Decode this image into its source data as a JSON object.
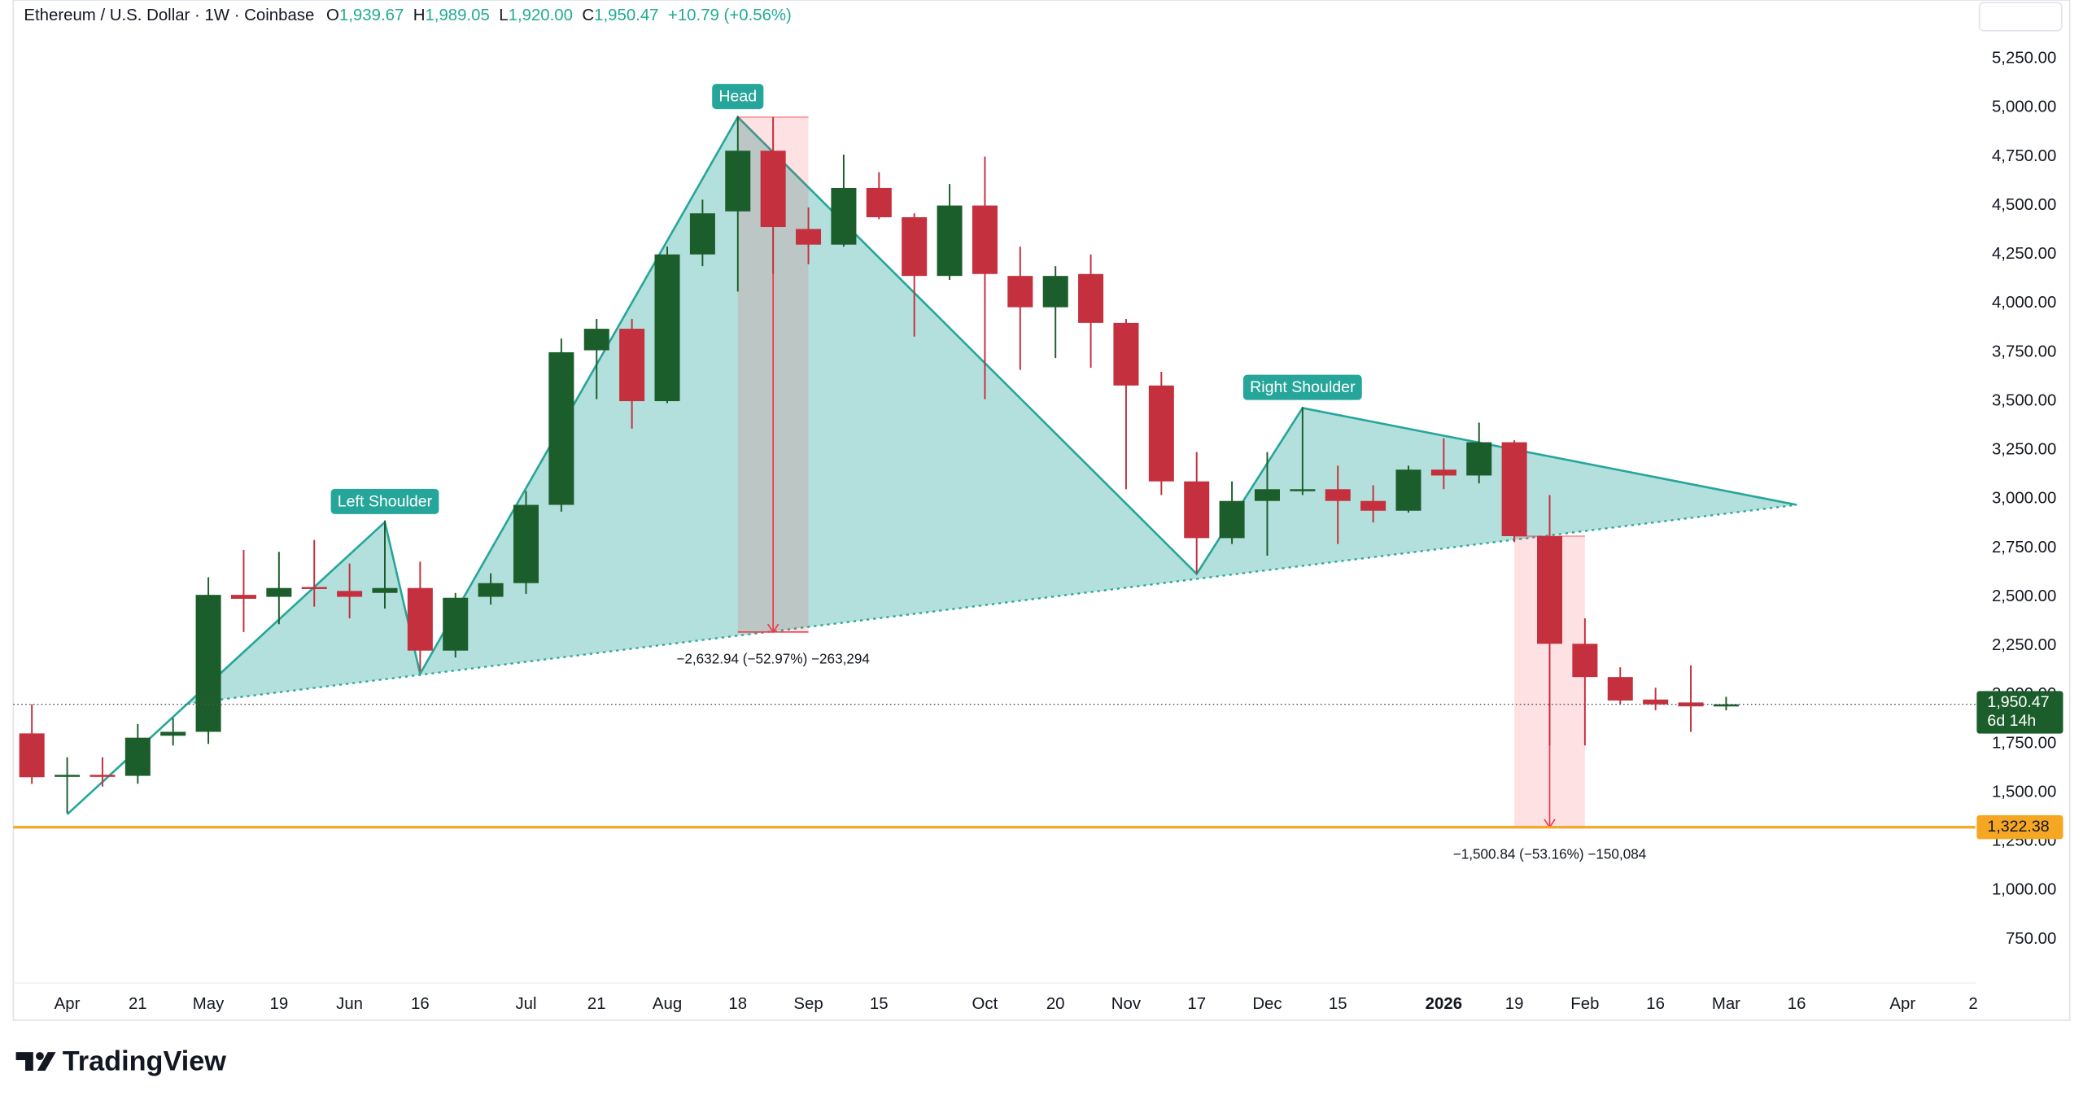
{
  "chart_data": {
    "type": "candlestick",
    "header": {
      "title": "Ethereum / U.S. Dollar · 1W · Coinbase",
      "ohlc": [
        {
          "label": "O",
          "value": "1,939.67"
        },
        {
          "label": "H",
          "value": "1,989.05"
        },
        {
          "label": "L",
          "value": "1,920.00"
        },
        {
          "label": "C",
          "value": "1,950.47"
        }
      ],
      "change": "+10.79 (+0.56%)"
    },
    "currency": "USD",
    "categories": [
      null,
      "Apr",
      null,
      "21",
      null,
      "May",
      null,
      "19",
      null,
      "Jun",
      null,
      "16",
      null,
      null,
      "Jul",
      null,
      "21",
      null,
      "Aug",
      null,
      "18",
      null,
      "Sep",
      null,
      "15",
      null,
      null,
      "Oct",
      null,
      "20",
      null,
      "Nov",
      null,
      "17",
      null,
      "Dec",
      null,
      "15",
      null,
      null,
      "2026",
      null,
      "19",
      null,
      "Feb",
      null,
      "16",
      null,
      "Mar",
      null,
      "16",
      null,
      null,
      "Apr",
      null,
      "2"
    ],
    "bold_categories": [
      "2026"
    ],
    "open": [
      1802,
      1580,
      1590,
      1585,
      1790,
      1810,
      2510,
      2500,
      2550,
      2530,
      2520,
      2545,
      2225,
      2500,
      2570,
      2970,
      3760,
      3870,
      3500,
      4250,
      4470,
      4780,
      4380,
      4300,
      4590,
      4440,
      4140,
      4500,
      4140,
      3980,
      4150,
      3900,
      3580,
      3090,
      2800,
      2990,
      3040,
      3050,
      2990,
      2940,
      3150,
      3120,
      3290,
      2810,
      2260,
      2090,
      1975,
      1960,
      1939.67,
      null,
      null,
      null,
      null,
      null,
      null,
      null
    ],
    "high": [
      1951,
      1680,
      1680,
      1850,
      1880,
      2600,
      2740,
      2730,
      2790,
      2670,
      2890,
      2680,
      2520,
      2620,
      3040,
      3820,
      3920,
      3920,
      4290,
      4530,
      4955,
      4950,
      4490,
      4760,
      4670,
      4460,
      4610,
      4750,
      4290,
      4190,
      4250,
      3920,
      3650,
      3240,
      3090,
      3240,
      3470,
      3170,
      3070,
      3170,
      3310,
      3390,
      3300,
      3020,
      2390,
      2140,
      2035,
      2150,
      1989.05,
      null,
      null,
      null,
      null,
      null,
      null,
      null
    ],
    "low": [
      1544,
      1395,
      1530,
      1545,
      1740,
      1748,
      2320,
      2360,
      2450,
      2390,
      2440,
      2120,
      2190,
      2460,
      2515,
      2935,
      3510,
      3360,
      3490,
      4190,
      4060,
      4150,
      4200,
      4290,
      4430,
      3830,
      4120,
      3510,
      3660,
      3720,
      3670,
      3050,
      3020,
      2620,
      2770,
      2710,
      3020,
      2770,
      2880,
      2930,
      3050,
      3080,
      2780,
      1740,
      1740,
      1950,
      1920,
      1810,
      1920,
      null,
      null,
      null,
      null,
      null,
      null,
      null
    ],
    "close": [
      1578,
      1590,
      1580,
      1780,
      1810,
      2510,
      2490,
      2545,
      2540,
      2500,
      2545,
      2225,
      2495,
      2570,
      2970,
      3750,
      3870,
      3500,
      4250,
      4460,
      4780,
      4390,
      4300,
      4590,
      4440,
      4140,
      4500,
      4150,
      3980,
      4140,
      3900,
      3580,
      3090,
      2800,
      2990,
      3050,
      3050,
      2990,
      2940,
      3150,
      3120,
      3290,
      2810,
      2260,
      2090,
      1970,
      1950,
      1940,
      1950.47,
      null,
      null,
      null,
      null,
      null,
      null,
      null
    ],
    "up_color": "#1b5e2c",
    "down_color": "#c4303e",
    "ylim": [
      526,
      5550
    ],
    "yticks": [
      {
        "value": 750,
        "label": "750.00"
      },
      {
        "value": 1000,
        "label": "1,000.00"
      },
      {
        "value": 1250,
        "label": "1,250.00"
      },
      {
        "value": 1500,
        "label": "1,500.00"
      },
      {
        "value": 1750,
        "label": "1,750.00"
      },
      {
        "value": 2000,
        "label": "2,000.00"
      },
      {
        "value": 2250,
        "label": "2,250.00"
      },
      {
        "value": 2500,
        "label": "2,500.00"
      },
      {
        "value": 2750,
        "label": "2,750.00"
      },
      {
        "value": 3000,
        "label": "3,000.00"
      },
      {
        "value": 3250,
        "label": "3,250.00"
      },
      {
        "value": 3500,
        "label": "3,500.00"
      },
      {
        "value": 3750,
        "label": "3,750.00"
      },
      {
        "value": 4000,
        "label": "4,000.00"
      },
      {
        "value": 4250,
        "label": "4,250.00"
      },
      {
        "value": 4500,
        "label": "4,500.00"
      },
      {
        "value": 4750,
        "label": "4,750.00"
      },
      {
        "value": 5000,
        "label": "5,000.00"
      },
      {
        "value": 5250,
        "label": "5,250.00"
      }
    ],
    "grid": false,
    "pattern": {
      "color": "#26a69a",
      "points": [
        {
          "i": 1,
          "price": 1388
        },
        {
          "i": 10,
          "price": 2882,
          "label": "Left Shoulder"
        },
        {
          "i": 11,
          "price": 2107
        },
        {
          "i": 20,
          "price": 4952,
          "label": "Head"
        },
        {
          "i": 33,
          "price": 2617
        },
        {
          "i": 36,
          "price": 3465,
          "label": "Right Shoulder"
        },
        {
          "i": 50,
          "price": 2970
        }
      ]
    },
    "measures": [
      {
        "i0": 20,
        "i1": 22,
        "top": 4952,
        "bottom": 2320,
        "label": "−2,632.94 (−52.97%) −263,294"
      },
      {
        "i0": 42,
        "i1": 44,
        "top": 2810,
        "bottom": 1322.38,
        "label": "−1,500.84 (−53.16%) −150,084"
      }
    ],
    "price_line": {
      "value": 1950.47,
      "label": "1,950.47",
      "countdown": "6d 14h",
      "color": "#1b5e2c"
    },
    "level_line": {
      "value": 1322.38,
      "label": "1,322.38",
      "color": "#f5a623"
    }
  },
  "brand": "TradingView"
}
